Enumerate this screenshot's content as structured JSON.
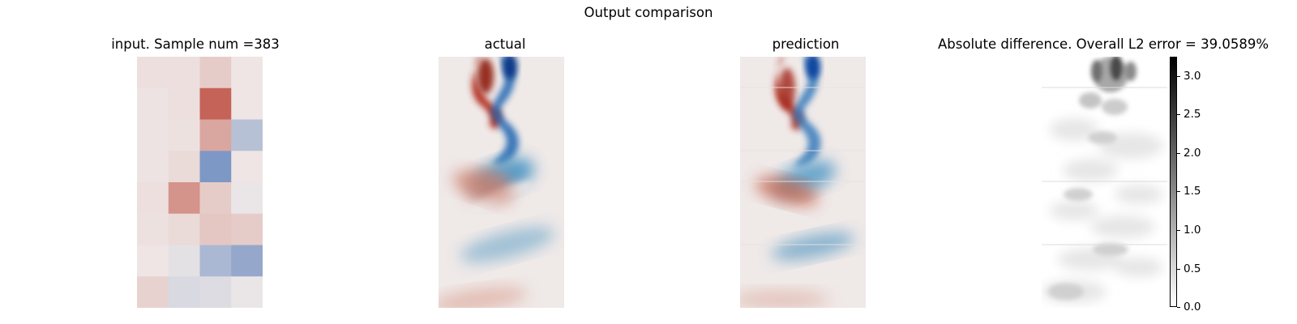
{
  "figure": {
    "title": "Output comparison"
  },
  "panels": [
    {
      "id": "input",
      "title": "input. Sample num =383"
    },
    {
      "id": "actual",
      "title": "actual"
    },
    {
      "id": "prediction",
      "title": "prediction"
    },
    {
      "id": "difference",
      "title": "Absolute difference. Overall L2 error = 39.0589%"
    }
  ],
  "colorbar": {
    "ticks": [
      "0.0",
      "0.5",
      "1.0",
      "1.5",
      "2.0",
      "2.5",
      "3.0"
    ],
    "range": [
      0,
      3.25
    ],
    "colormap": "white-to-black"
  },
  "chart_data": {
    "type": "heatmap",
    "input_grid": {
      "rows": 8,
      "cols": 4,
      "values": [
        [
          0.05,
          0.05,
          0.15,
          0.02
        ],
        [
          0.03,
          0.05,
          0.7,
          0.02
        ],
        [
          0.03,
          0.04,
          0.35,
          -0.25
        ],
        [
          0.03,
          0.08,
          -0.5,
          0.02
        ],
        [
          0.05,
          0.45,
          0.15,
          -0.02
        ],
        [
          0.04,
          0.08,
          0.18,
          0.15
        ],
        [
          0.02,
          -0.05,
          -0.3,
          -0.4
        ],
        [
          0.12,
          -0.1,
          -0.08,
          -0.02
        ]
      ]
    },
    "diverging_colors": {
      "negative": "#0d47a1",
      "neutral": "#efe9e8",
      "positive": "#b32a1a"
    },
    "difference_max": 3.25
  }
}
